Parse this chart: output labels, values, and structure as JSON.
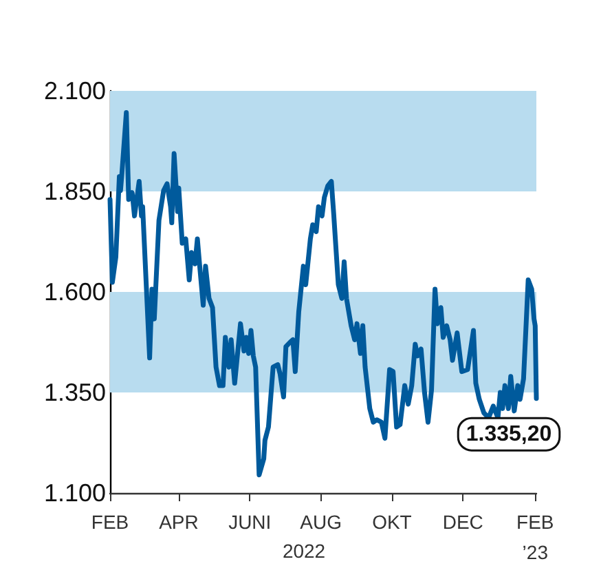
{
  "chart_data": {
    "type": "line",
    "xlabel": "2022",
    "x": [
      "2022-02-01",
      "2022-02-03",
      "2022-02-06",
      "2022-02-09",
      "2022-02-10",
      "2022-02-11",
      "2022-02-15",
      "2022-02-17",
      "2022-02-20",
      "2022-02-22",
      "2022-02-26",
      "2022-02-28",
      "2022-03-01",
      "2022-03-07",
      "2022-03-09",
      "2022-03-11",
      "2022-03-15",
      "2022-03-19",
      "2022-03-22",
      "2022-03-25",
      "2022-03-26",
      "2022-03-28",
      "2022-03-31",
      "2022-04-01",
      "2022-04-04",
      "2022-04-07",
      "2022-04-10",
      "2022-04-12",
      "2022-04-15",
      "2022-04-17",
      "2022-04-19",
      "2022-04-22",
      "2022-04-24",
      "2022-04-27",
      "2022-04-30",
      "2022-05-03",
      "2022-05-06",
      "2022-05-09",
      "2022-05-11",
      "2022-05-14",
      "2022-05-16",
      "2022-05-19",
      "2022-05-24",
      "2022-05-27",
      "2022-05-29",
      "2022-05-31",
      "2022-06-02",
      "2022-06-04",
      "2022-06-06",
      "2022-06-09",
      "2022-06-13",
      "2022-06-14",
      "2022-06-17",
      "2022-06-21",
      "2022-06-25",
      "2022-06-27",
      "2022-06-30",
      "2022-07-02",
      "2022-07-06",
      "2022-07-08",
      "2022-07-10",
      "2022-07-13",
      "2022-07-17",
      "2022-07-19",
      "2022-07-23",
      "2022-07-25",
      "2022-07-28",
      "2022-07-30",
      "2022-08-02",
      "2022-08-04",
      "2022-08-07",
      "2022-08-10",
      "2022-08-12",
      "2022-08-16",
      "2022-08-19",
      "2022-08-21",
      "2022-08-23",
      "2022-08-27",
      "2022-08-30",
      "2022-09-01",
      "2022-09-04",
      "2022-09-06",
      "2022-09-08",
      "2022-09-12",
      "2022-09-15",
      "2022-09-18",
      "2022-09-22",
      "2022-09-25",
      "2022-09-29",
      "2022-10-02",
      "2022-10-05",
      "2022-10-08",
      "2022-10-12",
      "2022-10-15",
      "2022-10-18",
      "2022-10-21",
      "2022-10-23",
      "2022-10-26",
      "2022-10-29",
      "2022-11-01",
      "2022-11-04",
      "2022-11-07",
      "2022-11-09",
      "2022-11-12",
      "2022-11-14",
      "2022-11-17",
      "2022-11-20",
      "2022-11-22",
      "2022-11-26",
      "2022-11-30",
      "2022-12-05",
      "2022-12-10",
      "2022-12-12",
      "2022-12-15",
      "2022-12-19",
      "2022-12-23",
      "2022-12-27",
      "2022-12-31",
      "2023-01-02",
      "2023-01-04",
      "2023-01-06",
      "2023-01-09",
      "2023-01-11",
      "2023-01-14",
      "2023-01-17",
      "2023-01-19",
      "2023-01-22",
      "2023-01-26",
      "2023-01-29",
      "2023-01-31",
      "2023-02-01",
      "2023-02-02"
    ],
    "values": [
      1830,
      1624,
      1687,
      1887,
      1852,
      1887,
      2046,
      1830,
      1847,
      1789,
      1875,
      1789,
      1812,
      1436,
      1607,
      1533,
      1778,
      1852,
      1869,
      1812,
      1772,
      1944,
      1800,
      1858,
      1721,
      1732,
      1630,
      1698,
      1670,
      1732,
      1664,
      1567,
      1664,
      1584,
      1561,
      1413,
      1367,
      1367,
      1487,
      1413,
      1481,
      1373,
      1521,
      1453,
      1487,
      1447,
      1504,
      1441,
      1413,
      1145,
      1185,
      1231,
      1264,
      1413,
      1419,
      1396,
      1339,
      1464,
      1476,
      1481,
      1402,
      1550,
      1664,
      1618,
      1732,
      1767,
      1750,
      1812,
      1789,
      1835,
      1864,
      1875,
      1795,
      1618,
      1584,
      1675,
      1584,
      1516,
      1481,
      1521,
      1447,
      1516,
      1413,
      1310,
      1276,
      1282,
      1276,
      1236,
      1407,
      1402,
      1264,
      1270,
      1367,
      1321,
      1367,
      1470,
      1441,
      1458,
      1350,
      1276,
      1356,
      1607,
      1521,
      1561,
      1487,
      1516,
      1481,
      1430,
      1498,
      1402,
      1407,
      1504,
      1373,
      1333,
      1299,
      1287,
      1316,
      1287,
      1350,
      1310,
      1367,
      1310,
      1390,
      1304,
      1367,
      1333,
      1384,
      1630,
      1607,
      1533,
      1516,
      1335.2
    ],
    "color": "#005a9c",
    "marker": "none",
    "line_style": "solid",
    "grid": false,
    "xlim": [
      "2022-02-01",
      "2023-02-02"
    ],
    "xticks": [
      {
        "value": "2022-02-01",
        "label": "FEB"
      },
      {
        "value": "2022-04-01",
        "label": "APR"
      },
      {
        "value": "2022-06-01",
        "label": "JUNI"
      },
      {
        "value": "2022-08-01",
        "label": "AUG"
      },
      {
        "value": "2022-10-01",
        "label": "OKT"
      },
      {
        "value": "2022-12-01",
        "label": "DEC"
      },
      {
        "value": "2023-02-01",
        "label": "FEB\n’23"
      }
    ],
    "ylim": [
      1100,
      2100
    ],
    "yticks": [
      {
        "value": 1100,
        "label": "1.100"
      },
      {
        "value": 1350,
        "label": "1.350"
      },
      {
        "value": 1600,
        "label": "1.600"
      },
      {
        "value": 1850,
        "label": "1.850"
      },
      {
        "value": 2100,
        "label": "2.100"
      }
    ],
    "bands": [
      {
        "axis": "y",
        "from": 1350,
        "to": 1600,
        "color": "#b8dcef"
      },
      {
        "axis": "y",
        "from": 1850,
        "to": 2100,
        "color": "#b8dcef"
      }
    ],
    "annotations": [
      {
        "text": "1.335,20",
        "x": "2023-02-02",
        "y": 1335.2
      }
    ]
  }
}
